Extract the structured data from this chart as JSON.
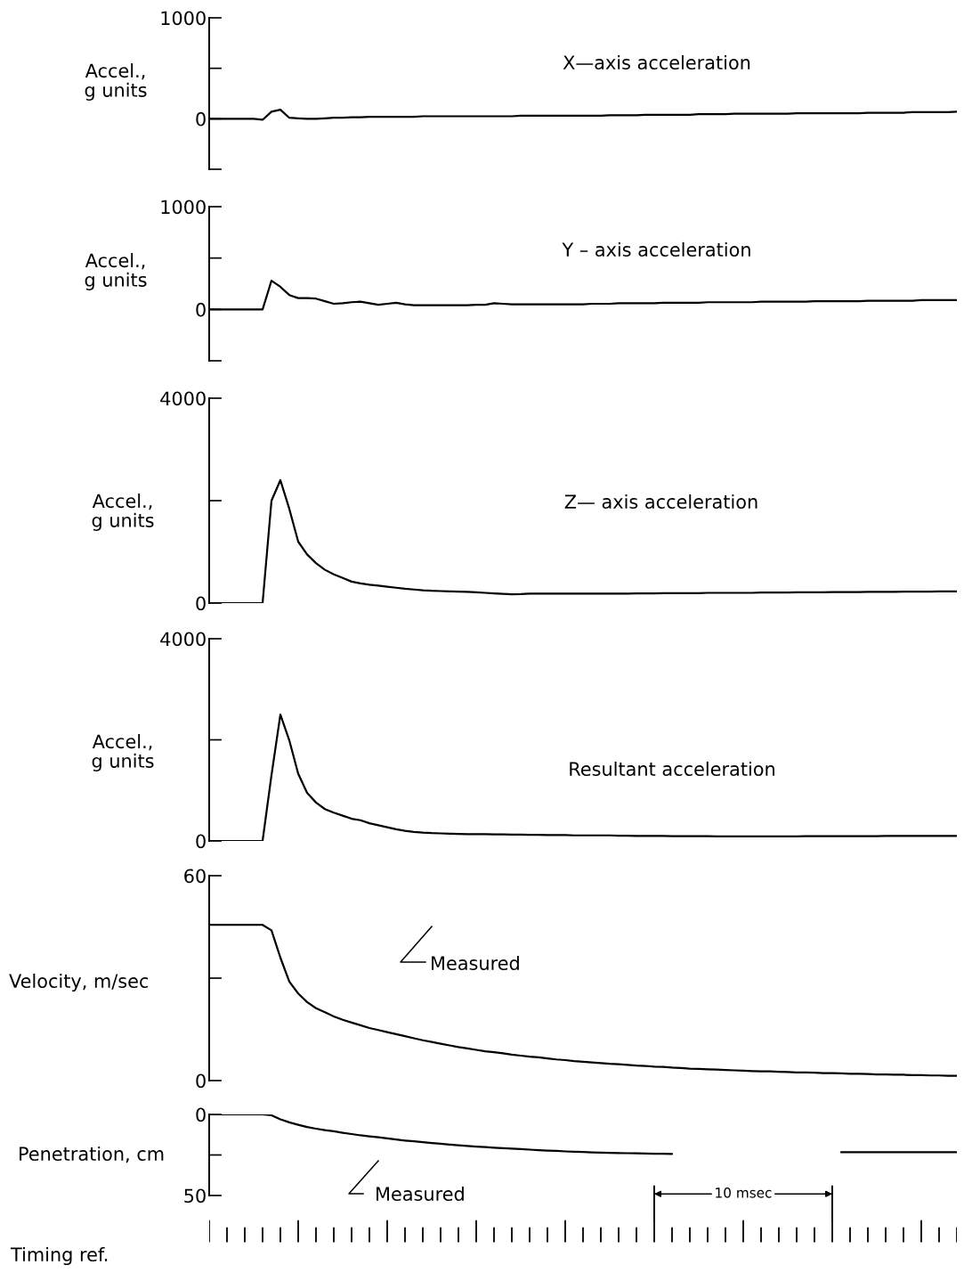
{
  "chart_data": [
    {
      "type": "line",
      "title": "X—axis acceleration",
      "ylabel": "Accel.,\ng units",
      "color": "#000000",
      "tick_labels": "y",
      "ylim": [
        -500,
        1000
      ],
      "yticks": [
        {
          "value": -500,
          "label": null
        },
        0,
        {
          "value": 500,
          "label": null
        },
        1000
      ],
      "categories": [
        null,
        null,
        null,
        null,
        null,
        null,
        null,
        null,
        null,
        null,
        null,
        null,
        null,
        null,
        null,
        null,
        null,
        null,
        null,
        null,
        null,
        null,
        null,
        null,
        null,
        null,
        null,
        null,
        null,
        null,
        null,
        null,
        null,
        null,
        null,
        null,
        null,
        null,
        null,
        null,
        null,
        null,
        null,
        null,
        null,
        null,
        null,
        null,
        null,
        null,
        null,
        null,
        null,
        null,
        null,
        null,
        null,
        null,
        null,
        null,
        null,
        null,
        null,
        null,
        null,
        null,
        null,
        null,
        null,
        null,
        null,
        null,
        null,
        null,
        null,
        null,
        null,
        null,
        null,
        null,
        null,
        null,
        null,
        null,
        null
      ],
      "values": [
        0,
        0,
        0,
        0,
        0,
        0,
        -10,
        70,
        90,
        10,
        5,
        0,
        0,
        5,
        10,
        10,
        15,
        15,
        20,
        20,
        20,
        20,
        20,
        20,
        25,
        25,
        25,
        25,
        25,
        25,
        25,
        25,
        25,
        25,
        25,
        30,
        30,
        30,
        30,
        30,
        30,
        30,
        30,
        30,
        30,
        35,
        35,
        35,
        35,
        40,
        40,
        40,
        40,
        40,
        40,
        45,
        45,
        45,
        45,
        50,
        50,
        50,
        50,
        50,
        50,
        50,
        55,
        55,
        55,
        55,
        55,
        55,
        55,
        55,
        60,
        60,
        60,
        60,
        60,
        65,
        65,
        65,
        65,
        65,
        70
      ]
    },
    {
      "type": "line",
      "title": "Y – axis acceleration",
      "ylabel": "Accel.,\ng units",
      "color": "#000000",
      "tick_labels": "y",
      "ylim": [
        -500,
        1000
      ],
      "yticks": [
        {
          "value": -500,
          "label": null
        },
        0,
        {
          "value": 500,
          "label": null
        },
        1000
      ],
      "categories": [
        null,
        null,
        null,
        null,
        null,
        null,
        null,
        null,
        null,
        null,
        null,
        null,
        null,
        null,
        null,
        null,
        null,
        null,
        null,
        null,
        null,
        null,
        null,
        null,
        null,
        null,
        null,
        null,
        null,
        null,
        null,
        null,
        null,
        null,
        null,
        null,
        null,
        null,
        null,
        null,
        null,
        null,
        null,
        null,
        null,
        null,
        null,
        null,
        null,
        null,
        null,
        null,
        null,
        null,
        null,
        null,
        null,
        null,
        null,
        null,
        null,
        null,
        null,
        null,
        null,
        null,
        null,
        null,
        null,
        null,
        null,
        null,
        null,
        null,
        null,
        null,
        null,
        null,
        null,
        null,
        null,
        null,
        null,
        null,
        null
      ],
      "values": [
        0,
        0,
        0,
        0,
        0,
        0,
        0,
        280,
        220,
        140,
        110,
        110,
        105,
        80,
        55,
        60,
        70,
        75,
        60,
        45,
        55,
        65,
        50,
        40,
        40,
        40,
        40,
        40,
        40,
        40,
        45,
        45,
        60,
        55,
        50,
        50,
        50,
        50,
        50,
        50,
        50,
        50,
        50,
        55,
        55,
        55,
        60,
        60,
        60,
        60,
        60,
        65,
        65,
        65,
        65,
        65,
        70,
        70,
        70,
        70,
        70,
        70,
        75,
        75,
        75,
        75,
        75,
        75,
        80,
        80,
        80,
        80,
        80,
        80,
        85,
        85,
        85,
        85,
        85,
        85,
        90,
        90,
        90,
        90,
        90
      ]
    },
    {
      "type": "line",
      "title": "Z— axis acceleration",
      "ylabel": "Accel.,\ng units",
      "color": "#000000",
      "tick_labels": "y",
      "ylim": [
        0,
        4000
      ],
      "yticks": [
        0,
        {
          "value": 2000,
          "label": null
        },
        4000
      ],
      "categories": [
        null,
        null,
        null,
        null,
        null,
        null,
        null,
        null,
        null,
        null,
        null,
        null,
        null,
        null,
        null,
        null,
        null,
        null,
        null,
        null,
        null,
        null,
        null,
        null,
        null,
        null,
        null,
        null,
        null,
        null,
        null,
        null,
        null,
        null,
        null,
        null,
        null,
        null,
        null,
        null,
        null,
        null,
        null,
        null,
        null,
        null,
        null,
        null,
        null,
        null,
        null,
        null,
        null,
        null,
        null,
        null,
        null,
        null,
        null,
        null,
        null,
        null,
        null,
        null,
        null,
        null,
        null,
        null,
        null,
        null,
        null,
        null,
        null,
        null,
        null,
        null,
        null,
        null,
        null,
        null,
        null,
        null,
        null,
        null,
        null
      ],
      "values": [
        0,
        0,
        0,
        0,
        0,
        0,
        0,
        2000,
        2400,
        1840,
        1200,
        950,
        780,
        650,
        560,
        490,
        420,
        385,
        360,
        340,
        320,
        300,
        280,
        265,
        250,
        240,
        235,
        230,
        225,
        220,
        210,
        200,
        190,
        180,
        170,
        175,
        185,
        185,
        185,
        185,
        185,
        185,
        185,
        185,
        185,
        185,
        185,
        185,
        190,
        190,
        190,
        195,
        195,
        195,
        195,
        195,
        200,
        200,
        200,
        200,
        200,
        200,
        205,
        205,
        205,
        205,
        210,
        210,
        210,
        210,
        215,
        215,
        215,
        215,
        220,
        220,
        220,
        220,
        225,
        225,
        225,
        225,
        230,
        230,
        230
      ]
    },
    {
      "type": "line",
      "title": "Resultant acceleration",
      "ylabel": "Accel.,\ng units",
      "color": "#000000",
      "tick_labels": "y",
      "ylim": [
        0,
        4000
      ],
      "yticks": [
        0,
        {
          "value": 2000,
          "label": null
        },
        4000
      ],
      "categories": [
        null,
        null,
        null,
        null,
        null,
        null,
        null,
        null,
        null,
        null,
        null,
        null,
        null,
        null,
        null,
        null,
        null,
        null,
        null,
        null,
        null,
        null,
        null,
        null,
        null,
        null,
        null,
        null,
        null,
        null,
        null,
        null,
        null,
        null,
        null,
        null,
        null,
        null,
        null,
        null,
        null,
        null,
        null,
        null,
        null,
        null,
        null,
        null,
        null,
        null,
        null,
        null,
        null,
        null,
        null,
        null,
        null,
        null,
        null,
        null,
        null,
        null,
        null,
        null,
        null,
        null,
        null,
        null,
        null,
        null,
        null,
        null,
        null,
        null,
        null,
        null,
        null,
        null,
        null,
        null,
        null,
        null,
        null,
        null,
        null
      ],
      "values": [
        0,
        0,
        0,
        0,
        0,
        0,
        0,
        1300,
        2500,
        1990,
        1330,
        950,
        760,
        630,
        560,
        500,
        440,
        410,
        350,
        310,
        270,
        230,
        200,
        180,
        165,
        155,
        150,
        145,
        140,
        135,
        135,
        135,
        130,
        130,
        125,
        125,
        120,
        120,
        115,
        115,
        115,
        110,
        110,
        110,
        110,
        110,
        105,
        105,
        100,
        100,
        100,
        100,
        95,
        95,
        95,
        95,
        95,
        90,
        90,
        90,
        90,
        90,
        90,
        90,
        90,
        90,
        90,
        95,
        95,
        95,
        95,
        95,
        95,
        95,
        95,
        95,
        100,
        100,
        100,
        100,
        100,
        100,
        100,
        100,
        100
      ]
    },
    {
      "type": "line",
      "ylabel": "Velocity, m/sec",
      "color": "#000000",
      "tick_labels": "y",
      "ylim": [
        0,
        60
      ],
      "yticks": [
        0,
        {
          "value": 30,
          "label": null
        },
        60
      ],
      "annotations": [
        "Measured"
      ],
      "categories": [
        null,
        null,
        null,
        null,
        null,
        null,
        null,
        null,
        null,
        null,
        null,
        null,
        null,
        null,
        null,
        null,
        null,
        null,
        null,
        null,
        null,
        null,
        null,
        null,
        null,
        null,
        null,
        null,
        null,
        null,
        null,
        null,
        null,
        null,
        null,
        null,
        null,
        null,
        null,
        null,
        null,
        null,
        null,
        null,
        null,
        null,
        null,
        null,
        null,
        null,
        null,
        null,
        null,
        null,
        null,
        null,
        null,
        null,
        null,
        null,
        null,
        null,
        null,
        null,
        null,
        null,
        null,
        null,
        null,
        null,
        null,
        null,
        null,
        null,
        null,
        null,
        null,
        null,
        null,
        null,
        null,
        null,
        null,
        null,
        null
      ],
      "values": [
        45.6,
        45.6,
        45.6,
        45.6,
        45.6,
        45.6,
        45.6,
        44,
        36,
        29,
        25.5,
        23,
        21.2,
        20,
        18.8,
        17.8,
        17,
        16.2,
        15.4,
        14.8,
        14.2,
        13.6,
        13,
        12.4,
        11.8,
        11.3,
        10.8,
        10.3,
        9.8,
        9.4,
        9,
        8.6,
        8.3,
        8,
        7.6,
        7.3,
        7,
        6.8,
        6.5,
        6.2,
        6,
        5.7,
        5.5,
        5.3,
        5.1,
        4.9,
        4.8,
        4.6,
        4.4,
        4.3,
        4.1,
        4,
        3.8,
        3.7,
        3.5,
        3.4,
        3.3,
        3.2,
        3.1,
        3,
        2.9,
        2.8,
        2.7,
        2.7,
        2.6,
        2.5,
        2.4,
        2.4,
        2.3,
        2.2,
        2.2,
        2.1,
        2,
        2,
        1.9,
        1.8,
        1.8,
        1.7,
        1.7,
        1.6,
        1.6,
        1.5,
        1.5,
        1.4,
        1.4
      ]
    },
    {
      "type": "line",
      "ylabel": "Penetration, cm",
      "color": "#000000",
      "tick_labels": "y",
      "ylim": [
        50,
        0
      ],
      "yticks": [
        0,
        {
          "value": 25,
          "label": null
        },
        50
      ],
      "annotations": [
        "Measured"
      ],
      "categories": [
        null,
        null,
        null,
        null,
        null,
        null,
        null,
        null,
        null,
        null,
        null,
        null,
        null,
        null,
        null,
        null,
        null,
        null,
        null,
        null,
        null,
        null,
        null,
        null,
        null,
        null,
        null,
        null,
        null,
        null,
        null,
        null,
        null,
        null,
        null,
        null,
        null,
        null,
        null,
        null,
        null,
        null,
        null,
        null,
        null,
        null,
        null,
        null,
        null,
        null,
        null,
        null,
        null,
        null,
        null,
        null,
        null,
        null,
        null,
        null,
        null,
        null,
        null,
        null,
        null,
        null,
        null,
        null,
        null,
        null,
        null,
        null,
        null,
        null,
        null,
        null,
        null,
        null,
        null,
        null,
        null,
        null,
        null,
        null,
        null
      ],
      "values": [
        0,
        0,
        0,
        0,
        0,
        0,
        0,
        0.5,
        3,
        4.9,
        6.4,
        7.8,
        8.8,
        9.7,
        10.4,
        11.3,
        12.1,
        12.9,
        13.5,
        14.1,
        14.8,
        15.5,
        16.1,
        16.6,
        17.1,
        17.6,
        18.1,
        18.6,
        19,
        19.4,
        19.8,
        20.1,
        20.5,
        20.8,
        21.1,
        21.4,
        21.7,
        22,
        22.3,
        22.5,
        22.8,
        23,
        23.2,
        23.4,
        23.6,
        23.7,
        23.8,
        23.9,
        24,
        24.1,
        24.2,
        24.3,
        24.4,
        null,
        null,
        null,
        null,
        null,
        null,
        null,
        null,
        null,
        null,
        null,
        null,
        null,
        null,
        null,
        null,
        null,
        null,
        23.3,
        23.3,
        23.3,
        23.3,
        23.3,
        23.3,
        23.3,
        23.3,
        23.3,
        23.3,
        23.3,
        23.3,
        23.3,
        23.3
      ]
    },
    {
      "type": "other",
      "ylabel": "Timing ref.",
      "annotations": [
        "10 msec"
      ]
    }
  ]
}
